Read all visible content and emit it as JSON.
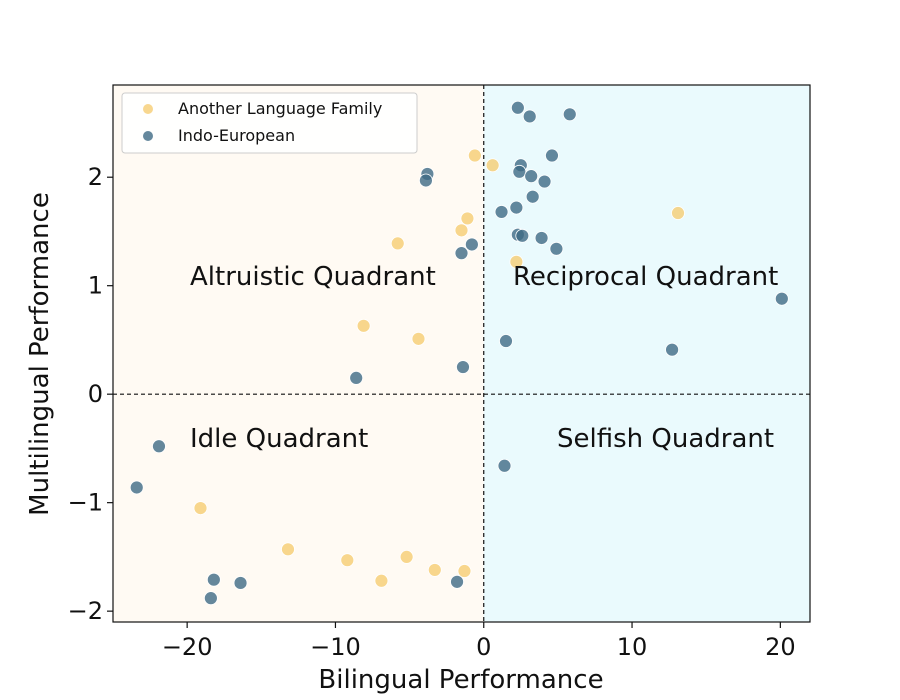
{
  "chart_data": {
    "type": "scatter",
    "xlabel": "Bilingual Performance",
    "ylabel": "Multilingual Performance",
    "xlim": [
      -25,
      22
    ],
    "ylim": [
      -2.1,
      2.85
    ],
    "x_ticks": [
      -20,
      -10,
      0,
      10,
      20
    ],
    "y_ticks": [
      -2,
      -1,
      0,
      1,
      2
    ],
    "x_tick_labels": [
      "−20",
      "−10",
      "0",
      "10",
      "20"
    ],
    "y_tick_labels": [
      "−2",
      "−1",
      "0",
      "1",
      "2"
    ],
    "grid": false,
    "legend_position": "top-left",
    "quadrant_labels": {
      "top_left": "Altruistic Quadrant",
      "top_right": "Reciprocal Quadrant",
      "bottom_left": "Idle Quadrant",
      "bottom_right": "Selfish Quadrant"
    },
    "colors": {
      "left_half_bg": "#fffaf3",
      "right_half_bg": "#eafafd",
      "another_family": "#f5c96a",
      "indo_european": "#3e6a85"
    },
    "series": [
      {
        "name": "Another Language Family",
        "color": "#f5c96a",
        "points": [
          [
            -0.6,
            2.2
          ],
          [
            0.6,
            2.11
          ],
          [
            -1.1,
            1.62
          ],
          [
            -1.5,
            1.51
          ],
          [
            -5.8,
            1.39
          ],
          [
            2.2,
            1.22
          ],
          [
            13.1,
            1.67
          ],
          [
            -8.1,
            0.63
          ],
          [
            -4.4,
            0.51
          ],
          [
            -19.1,
            -1.05
          ],
          [
            -13.2,
            -1.43
          ],
          [
            -9.2,
            -1.53
          ],
          [
            -5.2,
            -1.5
          ],
          [
            -6.9,
            -1.72
          ],
          [
            -3.3,
            -1.62
          ],
          [
            -1.3,
            -1.63
          ]
        ]
      },
      {
        "name": "Indo-European",
        "color": "#3e6a85",
        "points": [
          [
            2.3,
            2.64
          ],
          [
            3.1,
            2.56
          ],
          [
            5.8,
            2.58
          ],
          [
            4.6,
            2.2
          ],
          [
            2.5,
            2.11
          ],
          [
            2.4,
            2.05
          ],
          [
            3.2,
            2.01
          ],
          [
            4.1,
            1.96
          ],
          [
            3.3,
            1.82
          ],
          [
            1.2,
            1.68
          ],
          [
            2.2,
            1.72
          ],
          [
            2.3,
            1.47
          ],
          [
            2.6,
            1.46
          ],
          [
            3.9,
            1.44
          ],
          [
            4.9,
            1.34
          ],
          [
            -3.8,
            2.03
          ],
          [
            -3.9,
            1.97
          ],
          [
            -0.8,
            1.38
          ],
          [
            -1.5,
            1.3
          ],
          [
            20.1,
            0.88
          ],
          [
            12.7,
            0.41
          ],
          [
            1.5,
            0.49
          ],
          [
            -8.6,
            0.15
          ],
          [
            -1.4,
            0.25
          ],
          [
            1.4,
            -0.66
          ],
          [
            -21.9,
            -0.48
          ],
          [
            -23.4,
            -0.86
          ],
          [
            -18.2,
            -1.71
          ],
          [
            -16.4,
            -1.74
          ],
          [
            -18.4,
            -1.88
          ],
          [
            -1.8,
            -1.73
          ]
        ]
      }
    ]
  }
}
